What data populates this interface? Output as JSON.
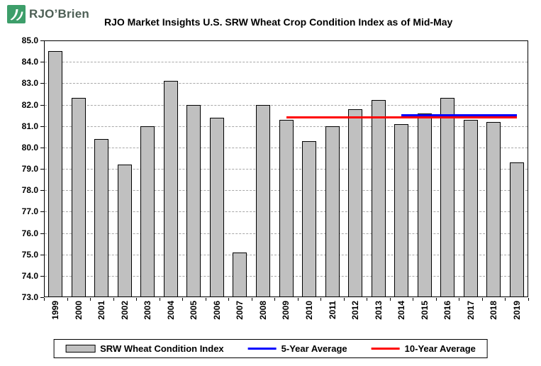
{
  "logo": {
    "text": "RJO’Brien"
  },
  "chart_data": {
    "type": "bar",
    "title": "RJO Market Insights U.S. SRW Wheat Crop Condition Index as of Mid-May",
    "categories": [
      "1999",
      "2000",
      "2001",
      "2002",
      "2003",
      "2004",
      "2005",
      "2006",
      "2007",
      "2008",
      "2009",
      "2010",
      "2011",
      "2012",
      "2013",
      "2014",
      "2015",
      "2016",
      "2017",
      "2018",
      "2019"
    ],
    "values": [
      84.5,
      82.3,
      80.4,
      79.2,
      81.0,
      83.1,
      82.0,
      81.4,
      75.1,
      82.0,
      81.3,
      80.3,
      81.0,
      81.8,
      82.2,
      81.1,
      81.6,
      82.3,
      81.3,
      81.2,
      79.3
    ],
    "ylim": [
      73.0,
      85.0
    ],
    "ytick_step": 1.0,
    "ytick_labels": [
      "85.0",
      "84.0",
      "83.0",
      "82.0",
      "81.0",
      "80.0",
      "79.0",
      "78.0",
      "77.0",
      "76.0",
      "75.0",
      "74.0",
      "73.0"
    ],
    "grid": "horizontal-dashed",
    "bar_color": "#c0c0c0",
    "bar_border_color": "#000000",
    "avg_lines": [
      {
        "name": "5-Year Average",
        "value": 81.5,
        "from": "2014",
        "to": "2019",
        "color": "#0000ff"
      },
      {
        "name": "10-Year Average",
        "value": 81.4,
        "from": "2009",
        "to": "2019",
        "color": "#ff0000"
      }
    ],
    "legend": {
      "position": "bottom",
      "items": [
        {
          "label": "SRW Wheat Condition Index",
          "swatch": "bar",
          "color": "#c0c0c0"
        },
        {
          "label": "5-Year Average",
          "swatch": "line",
          "color": "#0000ff"
        },
        {
          "label": "10-Year Average",
          "swatch": "line",
          "color": "#ff0000"
        }
      ]
    }
  }
}
